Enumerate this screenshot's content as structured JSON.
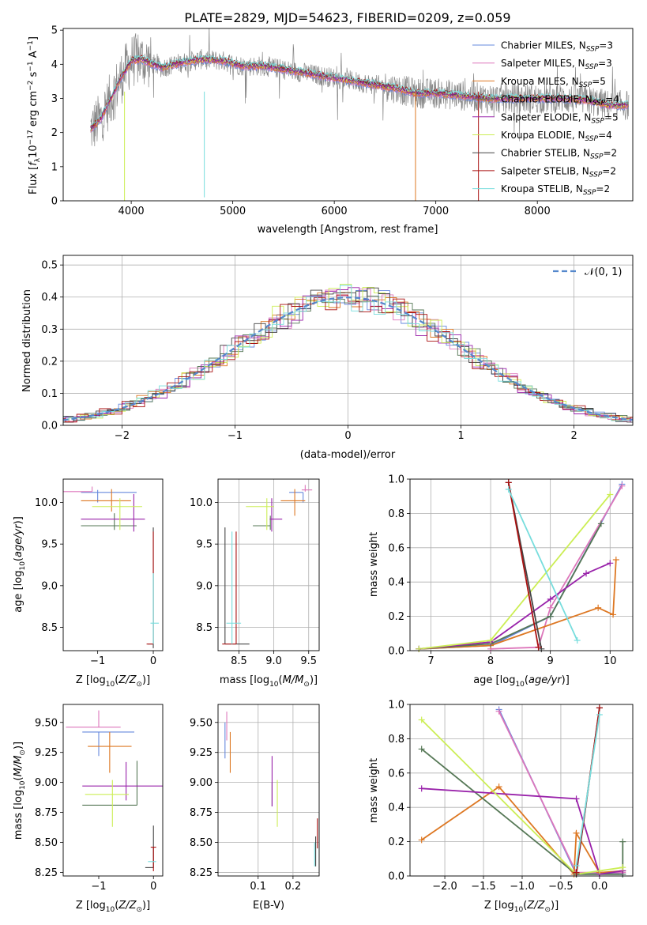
{
  "title": "PLATE=2829, MJD=54623, FIBERID=0209, z=0.059",
  "colors": [
    "#6688dd",
    "#dd77bb",
    "#dd7722",
    "#557755",
    "#9922aa",
    "#ccee55",
    "#444444",
    "#aa1111",
    "#77dddd"
  ],
  "legend": [
    {
      "name": "Chabrier MILES",
      "n": "3"
    },
    {
      "name": "Salpeter MILES",
      "n": "3"
    },
    {
      "name": "Kroupa MILES",
      "n": "5"
    },
    {
      "name": "Chabrier ELODIE",
      "n": "4"
    },
    {
      "name": "Salpeter ELODIE",
      "n": "5"
    },
    {
      "name": "Kroupa ELODIE",
      "n": "4"
    },
    {
      "name": "Chabrier STELIB",
      "n": "2"
    },
    {
      "name": "Salpeter STELIB",
      "n": "2"
    },
    {
      "name": "Kroupa STELIB",
      "n": "2"
    }
  ],
  "legend_nsub": "SSP",
  "chart_data": [
    {
      "id": "spectrum",
      "type": "line",
      "xlabel": "wavelength [Angstrom, rest frame]",
      "ylabel": "Flux [f_λ 10^-17 erg cm^-2 s^-1 A^-1]",
      "xlim": [
        3330,
        8940
      ],
      "ylim": [
        0,
        5.05
      ],
      "xticks": [
        4000,
        5000,
        6000,
        7000,
        8000
      ],
      "yticks": [
        0,
        1,
        2,
        3,
        4,
        5
      ],
      "x_range": [
        3600,
        8900
      ],
      "model_shape": [
        [
          3600,
          2.1
        ],
        [
          3700,
          2.4
        ],
        [
          3800,
          3.0
        ],
        [
          3900,
          3.6
        ],
        [
          4000,
          4.1
        ],
        [
          4100,
          4.15
        ],
        [
          4300,
          3.9
        ],
        [
          4500,
          4.05
        ],
        [
          4700,
          4.15
        ],
        [
          4900,
          4.1
        ],
        [
          5100,
          3.95
        ],
        [
          5300,
          3.95
        ],
        [
          5500,
          3.85
        ],
        [
          5800,
          3.7
        ],
        [
          6000,
          3.6
        ],
        [
          6200,
          3.5
        ],
        [
          6400,
          3.4
        ],
        [
          6600,
          3.3
        ],
        [
          6800,
          3.15
        ],
        [
          7000,
          3.15
        ],
        [
          7200,
          3.1
        ],
        [
          7500,
          3.0
        ],
        [
          7800,
          3.0
        ],
        [
          8200,
          3.0
        ],
        [
          8500,
          2.95
        ],
        [
          8700,
          2.8
        ]
      ],
      "grid": false,
      "legend_position": "upper right"
    },
    {
      "id": "residuals",
      "type": "histogram",
      "xlabel": "(data-model)/error",
      "ylabel": "Normed distribution",
      "xlim": [
        -2.52,
        2.52
      ],
      "ylim": [
        0,
        0.53
      ],
      "xticks": [
        -2,
        -1,
        0,
        1,
        2
      ],
      "yticks": [
        0.0,
        0.1,
        0.2,
        0.3,
        0.4,
        0.5
      ],
      "bin_width": 0.1,
      "reference_curve": {
        "name": "N(0,1)",
        "style": "dashed",
        "color": "#5588cc"
      },
      "grid": true,
      "legend_position": "upper right"
    },
    {
      "id": "age_vs_Z",
      "type": "errorbar",
      "xlabel": "Z [log10(Z/Z_sun)]",
      "ylabel": "age  [log10(age/yr)]",
      "xlim": [
        -1.62,
        0.17
      ],
      "ylim": [
        8.22,
        10.28
      ],
      "xticks": [
        -1,
        0
      ],
      "yticks": [
        8.5,
        9.0,
        9.5,
        10.0
      ],
      "points": [
        {
          "x": -1.0,
          "xerr": [
            0.3,
            0.7
          ],
          "y": 10.12,
          "yerr": [
            0.12,
            0.03
          ]
        },
        {
          "x": -1.1,
          "xerr": [
            0.65,
            0.0
          ],
          "y": 10.13,
          "yerr": [
            0.0,
            0.06
          ]
        },
        {
          "x": -0.75,
          "xerr": [
            0.55,
            0.35
          ],
          "y": 10.02,
          "yerr": [
            0.13,
            0.14
          ]
        },
        {
          "x": -0.7,
          "xerr": [
            0.6,
            0.4
          ],
          "y": 9.72,
          "yerr": [
            0.05,
            0.15
          ]
        },
        {
          "x": -0.35,
          "xerr": [
            0.95,
            0.2
          ],
          "y": 9.8,
          "yerr": [
            0.15,
            0.3
          ]
        },
        {
          "x": -0.6,
          "xerr": [
            0.5,
            0.4
          ],
          "y": 9.95,
          "yerr": [
            0.28,
            0.1
          ]
        },
        {
          "x": 0.0,
          "xerr": [
            0.1,
            0.0
          ],
          "y": 8.3,
          "yerr": [
            0.05,
            1.4
          ]
        },
        {
          "x": 0.0,
          "xerr": [
            0.12,
            0.0
          ],
          "y": 8.3,
          "yerr": [
            0.0,
            1.35
          ]
        },
        {
          "x": 0.0,
          "xerr": [
            0.05,
            0.1
          ],
          "y": 8.55,
          "yerr": [
            0.25,
            0.6
          ]
        }
      ],
      "grid": false
    },
    {
      "id": "age_vs_mass",
      "type": "errorbar",
      "xlabel": "mass [log10(M/M_sun)]",
      "ylabel": "",
      "xlim": [
        8.2,
        9.65
      ],
      "ylim": [
        8.22,
        10.28
      ],
      "xticks": [
        8.5,
        9.0,
        9.5
      ],
      "yticks": [
        8.5,
        9.0,
        9.5,
        10.0
      ],
      "points": [
        {
          "x": 9.42,
          "xerr": [
            0.2,
            0.0
          ],
          "y": 10.12,
          "yerr": [
            0.12,
            0.0
          ]
        },
        {
          "x": 9.45,
          "xerr": [
            0.05,
            0.1
          ],
          "y": 10.15,
          "yerr": [
            0.02,
            0.06
          ]
        },
        {
          "x": 9.3,
          "xerr": [
            0.2,
            0.15
          ],
          "y": 10.02,
          "yerr": [
            0.18,
            0.14
          ]
        },
        {
          "x": 8.95,
          "xerr": [
            0.25,
            0.0
          ],
          "y": 9.72,
          "yerr": [
            0.05,
            0.12
          ]
        },
        {
          "x": 8.97,
          "xerr": [
            0.03,
            0.15
          ],
          "y": 9.8,
          "yerr": [
            0.15,
            0.25
          ]
        },
        {
          "x": 8.9,
          "xerr": [
            0.3,
            0.1
          ],
          "y": 9.95,
          "yerr": [
            0.28,
            0.1
          ]
        },
        {
          "x": 8.3,
          "xerr": [
            0.0,
            0.35
          ],
          "y": 8.3,
          "yerr": [
            0.0,
            1.4
          ]
        },
        {
          "x": 8.46,
          "xerr": [
            0.2,
            0.0
          ],
          "y": 8.3,
          "yerr": [
            0.0,
            1.35
          ]
        },
        {
          "x": 8.4,
          "xerr": [
            0.08,
            0.13
          ],
          "y": 8.55,
          "yerr": [
            0.25,
            1.1
          ]
        }
      ],
      "grid": true
    },
    {
      "id": "weights_vs_age",
      "type": "line",
      "xlabel": "age  [log10(age/yr)]",
      "ylabel": "mass weight",
      "xlim": [
        6.65,
        10.38
      ],
      "ylim": [
        0,
        1.0
      ],
      "xticks": [
        7,
        8,
        9,
        10
      ],
      "yticks": [
        0.0,
        0.2,
        0.4,
        0.6,
        0.8,
        1.0
      ],
      "series": [
        {
          "x": [
            6.8,
            8.0,
            9.0,
            10.2
          ],
          "y": [
            0.01,
            0.03,
            0.2,
            0.97
          ]
        },
        {
          "x": [
            8.0,
            8.8,
            9.0,
            10.2
          ],
          "y": [
            0.01,
            0.02,
            0.25,
            0.96
          ]
        },
        {
          "x": [
            6.8,
            8.0,
            9.8,
            10.05,
            10.1
          ],
          "y": [
            0.01,
            0.03,
            0.25,
            0.21,
            0.53
          ]
        },
        {
          "x": [
            6.8,
            8.0,
            9.0,
            9.85
          ],
          "y": [
            0.01,
            0.04,
            0.2,
            0.74
          ]
        },
        {
          "x": [
            6.8,
            8.0,
            9.0,
            9.6,
            10.0
          ],
          "y": [
            0.01,
            0.05,
            0.3,
            0.45,
            0.51
          ]
        },
        {
          "x": [
            6.8,
            8.0,
            10.0
          ],
          "y": [
            0.01,
            0.06,
            0.91
          ]
        },
        {
          "x": [
            8.3,
            8.85
          ],
          "y": [
            0.98,
            0.01
          ]
        },
        {
          "x": [
            8.3,
            8.8
          ],
          "y": [
            0.98,
            0.02
          ]
        },
        {
          "x": [
            8.3,
            9.45
          ],
          "y": [
            0.94,
            0.06
          ]
        }
      ],
      "grid": true
    },
    {
      "id": "mass_vs_Z",
      "type": "errorbar",
      "xlabel": "Z [log10(Z/Z_sun)]",
      "ylabel": "mass [log10(M/M_sun)]",
      "xlim": [
        -1.65,
        0.17
      ],
      "ylim": [
        8.22,
        9.65
      ],
      "xticks": [
        -1,
        0
      ],
      "yticks": [
        8.25,
        8.5,
        8.75,
        9.0,
        9.25,
        9.5
      ],
      "points": [
        {
          "x": -1.0,
          "xerr": [
            0.3,
            0.65
          ],
          "y": 9.42,
          "yerr": [
            0.2,
            0.0
          ]
        },
        {
          "x": -1.0,
          "xerr": [
            0.6,
            0.4
          ],
          "y": 9.46,
          "yerr": [
            0.0,
            0.14
          ]
        },
        {
          "x": -0.8,
          "xerr": [
            0.4,
            0.4
          ],
          "y": 9.3,
          "yerr": [
            0.22,
            0.12
          ]
        },
        {
          "x": -0.3,
          "xerr": [
            1.0,
            0.0
          ],
          "y": 8.81,
          "yerr": [
            0.0,
            0.37
          ]
        },
        {
          "x": -0.5,
          "xerr": [
            0.8,
            0.7
          ],
          "y": 8.97,
          "yerr": [
            0.12,
            0.2
          ]
        },
        {
          "x": -0.75,
          "xerr": [
            0.5,
            0.3
          ],
          "y": 8.9,
          "yerr": [
            0.27,
            0.12
          ]
        },
        {
          "x": 0.0,
          "xerr": [
            0.15,
            0.0
          ],
          "y": 8.29,
          "yerr": [
            0.0,
            0.35
          ]
        },
        {
          "x": 0.0,
          "xerr": [
            0.05,
            0.05
          ],
          "y": 8.46,
          "yerr": [
            0.2,
            0.0
          ]
        },
        {
          "x": 0.0,
          "xerr": [
            0.1,
            0.05
          ],
          "y": 8.34,
          "yerr": [
            0.0,
            0.0
          ]
        }
      ],
      "grid": false
    },
    {
      "id": "mass_vs_ebv",
      "type": "errorbar",
      "xlabel": "E(B-V)",
      "ylabel": "",
      "xlim": [
        -0.015,
        0.275
      ],
      "ylim": [
        8.22,
        9.65
      ],
      "xticks": [
        0.1,
        0.2
      ],
      "yticks": [
        8.25,
        8.5,
        8.75,
        9.0,
        9.25,
        9.5
      ],
      "points": [
        {
          "x": 0.005,
          "xerr": [
            0,
            0
          ],
          "y": 9.4,
          "yerr": [
            0.2,
            0.1
          ]
        },
        {
          "x": 0.01,
          "xerr": [
            0,
            0
          ],
          "y": 9.45,
          "yerr": [
            0.1,
            0.14
          ]
        },
        {
          "x": 0.02,
          "xerr": [
            0,
            0
          ],
          "y": 9.3,
          "yerr": [
            0.22,
            0.12
          ]
        },
        {
          "x": 0.14,
          "xerr": [
            0,
            0
          ],
          "y": 9.0,
          "yerr": [
            0.2,
            0.0
          ]
        },
        {
          "x": 0.14,
          "xerr": [
            0,
            0
          ],
          "y": 8.97,
          "yerr": [
            0.17,
            0.25
          ]
        },
        {
          "x": 0.155,
          "xerr": [
            0,
            0
          ],
          "y": 8.9,
          "yerr": [
            0.27,
            0.12
          ]
        },
        {
          "x": 0.265,
          "xerr": [
            0,
            0
          ],
          "y": 8.45,
          "yerr": [
            0.15,
            0.1
          ]
        },
        {
          "x": 0.27,
          "xerr": [
            0,
            0
          ],
          "y": 8.55,
          "yerr": [
            0.1,
            0.15
          ]
        },
        {
          "x": 0.262,
          "xerr": [
            0,
            0
          ],
          "y": 8.4,
          "yerr": [
            0.1,
            0.1
          ]
        }
      ],
      "grid": true
    },
    {
      "id": "weights_vs_Z",
      "type": "line",
      "xlabel": "Z [log10(Z/Z_sun)]",
      "ylabel": "mass weight",
      "xlim": [
        -2.45,
        0.43
      ],
      "ylim": [
        0,
        1.0
      ],
      "xticks": [
        -2.0,
        -1.5,
        -1.0,
        -0.5,
        0.0
      ],
      "yticks": [
        0.0,
        0.2,
        0.4,
        0.6,
        0.8,
        1.0
      ],
      "series": [
        {
          "x": [
            -1.3,
            -0.3,
            0.0,
            0.3
          ],
          "y": [
            0.97,
            0.01,
            0.02,
            0.01
          ]
        },
        {
          "x": [
            -1.3,
            -0.3,
            0.0,
            0.3
          ],
          "y": [
            0.96,
            0.02,
            0.02,
            0.02
          ]
        },
        {
          "x": [
            -2.3,
            -1.3,
            -0.33,
            -0.3,
            0.0,
            0.3
          ],
          "y": [
            0.21,
            0.52,
            0.01,
            0.25,
            0.02,
            0.03
          ]
        },
        {
          "x": [
            -2.3,
            -0.3,
            0.0,
            0.3,
            0.3
          ],
          "y": [
            0.74,
            0.01,
            0.01,
            0.01,
            0.2
          ]
        },
        {
          "x": [
            -2.3,
            -0.3,
            0.0,
            0.3
          ],
          "y": [
            0.51,
            0.45,
            0.01,
            0.03
          ]
        },
        {
          "x": [
            -2.3,
            -0.3,
            0.0,
            0.3
          ],
          "y": [
            0.91,
            0.01,
            0.03,
            0.05
          ]
        },
        {
          "x": [
            -0.3,
            0.0
          ],
          "y": [
            0.01,
            0.98
          ]
        },
        {
          "x": [
            -0.3,
            0.0
          ],
          "y": [
            0.02,
            0.98
          ]
        },
        {
          "x": [
            -0.3,
            0.0
          ],
          "y": [
            0.06,
            0.94
          ]
        }
      ],
      "grid": true
    }
  ]
}
